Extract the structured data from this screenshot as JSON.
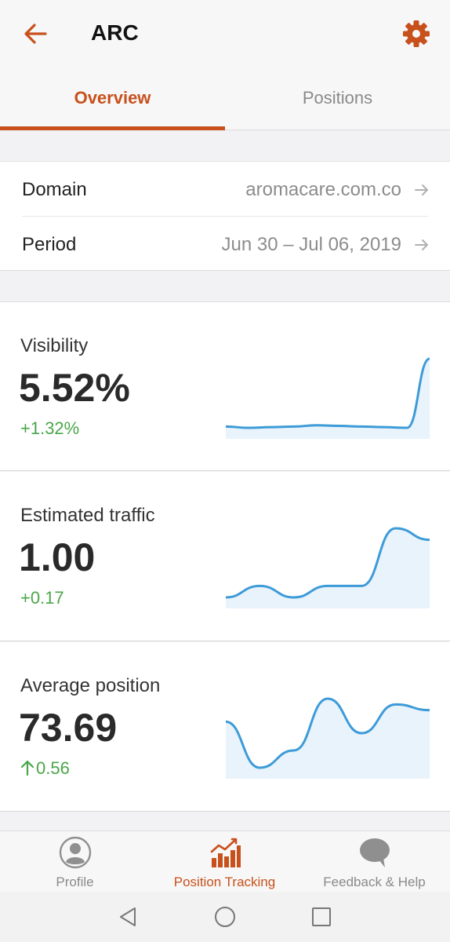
{
  "header": {
    "title": "ARC",
    "accent_color": "#c8501c",
    "back_icon": "arrow-left-icon",
    "settings_icon": "gear-icon"
  },
  "tabs": [
    {
      "label": "Overview",
      "active": true
    },
    {
      "label": "Positions",
      "active": false
    }
  ],
  "info": {
    "domain_label": "Domain",
    "domain_value": "aromacare.com.co",
    "period_label": "Period",
    "period_value": "Jun 30 – Jul 06, 2019"
  },
  "metrics": [
    {
      "label": "Visibility",
      "value": "5.52%",
      "change": "+1.32%",
      "trend": [
        0.2,
        0.1,
        0.15,
        0.2,
        0.3,
        0.25,
        0.2,
        0.15,
        0.1,
        5.5
      ]
    },
    {
      "label": "Estimated traffic",
      "value": "1.00",
      "change": "+0.17",
      "trend": [
        0.1,
        0.25,
        0.1,
        0.25,
        0.25,
        1.0,
        0.85
      ]
    },
    {
      "label": "Average position",
      "value": "73.69",
      "change": "0.56",
      "change_direction": "up",
      "trend": [
        78,
        70,
        73,
        82,
        76,
        81,
        80
      ]
    }
  ],
  "bottom_nav": [
    {
      "label": "Profile",
      "icon": "profile-icon",
      "active": false
    },
    {
      "label": "Position Tracking",
      "icon": "chart-bars-icon",
      "active": true
    },
    {
      "label": "Feedback & Help",
      "icon": "chat-bubble-icon",
      "active": false
    }
  ],
  "system_nav": [
    "back-triangle-icon",
    "home-circle-icon",
    "recents-square-icon"
  ],
  "colors": {
    "positive": "#4aa64a",
    "sparkline_stroke": "#3d9bd8",
    "sparkline_fill": "#e8f3fc"
  }
}
